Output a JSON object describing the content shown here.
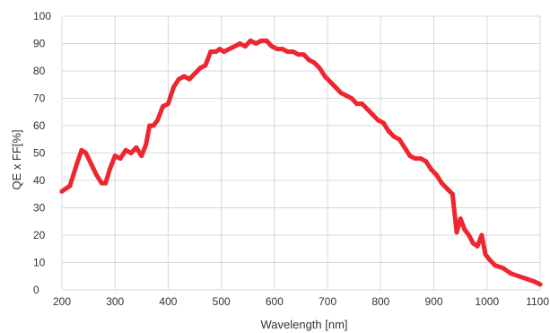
{
  "chart_data": {
    "type": "line",
    "xlabel": "Wavelength [nm]",
    "ylabel": "QE x FF[%]",
    "xlim": [
      200,
      1100
    ],
    "ylim": [
      0,
      100
    ],
    "xticks": [
      200,
      300,
      400,
      500,
      600,
      700,
      800,
      900,
      1000,
      1100
    ],
    "yticks": [
      0,
      10,
      20,
      30,
      40,
      50,
      60,
      70,
      80,
      90,
      100
    ],
    "grid": true,
    "line_color": "#ee2630",
    "series": [
      {
        "x": [
          200,
          215,
          228,
          237,
          245,
          255,
          265,
          275,
          282,
          290,
          300,
          310,
          320,
          330,
          340,
          350,
          358,
          365,
          372,
          380,
          390,
          400,
          410,
          420,
          430,
          440,
          450,
          460,
          470,
          480,
          490,
          497,
          505,
          515,
          525,
          535,
          545,
          555,
          565,
          575,
          585,
          595,
          605,
          615,
          625,
          635,
          645,
          655,
          665,
          675,
          685,
          695,
          705,
          715,
          725,
          735,
          745,
          755,
          765,
          775,
          785,
          795,
          805,
          815,
          825,
          835,
          845,
          855,
          865,
          875,
          885,
          895,
          905,
          915,
          925,
          935,
          943,
          950,
          958,
          966,
          974,
          982,
          990,
          997,
          1005,
          1015,
          1030,
          1045,
          1060,
          1075,
          1090,
          1100
        ],
        "y": [
          36,
          38,
          46,
          51,
          50,
          46,
          42,
          39,
          39,
          44,
          49,
          48,
          51,
          50,
          52,
          49,
          53,
          60,
          60,
          62,
          67,
          68,
          74,
          77,
          78,
          77,
          79,
          81,
          82,
          87,
          87,
          88,
          87,
          88,
          89,
          90,
          89,
          91,
          90,
          91,
          91,
          89,
          88,
          88,
          87,
          87,
          86,
          86,
          84,
          83,
          81,
          78,
          76,
          74,
          72,
          71,
          70,
          68,
          68,
          66,
          64,
          62,
          61,
          58,
          56,
          55,
          52,
          49,
          48,
          48,
          47,
          44,
          42,
          39,
          37,
          35,
          21,
          26,
          22,
          20,
          17,
          16,
          20,
          13,
          11,
          9,
          8,
          6,
          5,
          4,
          3,
          2
        ]
      }
    ]
  }
}
